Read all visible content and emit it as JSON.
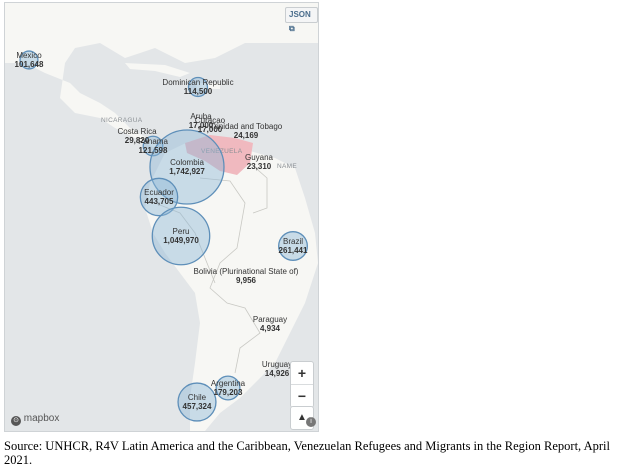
{
  "map": {
    "json_button": "JSON",
    "background_labels": [
      "NICARAGUA",
      "VENEZUELA",
      "NAME"
    ],
    "bubble_fill": "#8fb7d8",
    "bubble_stroke": "#5e8fb9",
    "highlight_color": "#f0b9bf",
    "units": "Venezuelan refugees and migrants",
    "countries": [
      {
        "name": "Mexico",
        "value": "101,648",
        "count": 101648
      },
      {
        "name": "Dominican Republic",
        "value": "114,500",
        "count": 114500
      },
      {
        "name": "Aruba",
        "value": "17,000",
        "count": 17000
      },
      {
        "name": "Curaçao",
        "value": "17,000",
        "count": 17000
      },
      {
        "name": "Trinidad and Tobago",
        "value": "24,169",
        "count": 24169
      },
      {
        "name": "Costa Rica",
        "value": "29,820",
        "count": 29820
      },
      {
        "name": "Panama",
        "value": "121,598",
        "count": 121598
      },
      {
        "name": "Colombia",
        "value": "1,742,927",
        "count": 1742927
      },
      {
        "name": "Guyana",
        "value": "23,310",
        "count": 23310
      },
      {
        "name": "Ecuador",
        "value": "443,705",
        "count": 443705
      },
      {
        "name": "Peru",
        "value": "1,049,970",
        "count": 1049970
      },
      {
        "name": "Brazil",
        "value": "261,441",
        "count": 261441
      },
      {
        "name": "Bolivia (Plurinational State of)",
        "value": "9,956",
        "count": 9956
      },
      {
        "name": "Paraguay",
        "value": "4,934",
        "count": 4934
      },
      {
        "name": "Uruguay",
        "value": "14,926",
        "count": 14926
      },
      {
        "name": "Argentina",
        "value": "179,203",
        "count": 179203
      },
      {
        "name": "Chile",
        "value": "457,324",
        "count": 457324
      }
    ],
    "controls": {
      "zoom_in": "+",
      "zoom_out": "−",
      "compass": "▲"
    },
    "attribution": "mapbox",
    "info": "i"
  },
  "caption": "Source: UNHCR, R4V Latin America and the Caribbean, Venezuelan Refugees and Migrants in the Region Report, April 2021."
}
